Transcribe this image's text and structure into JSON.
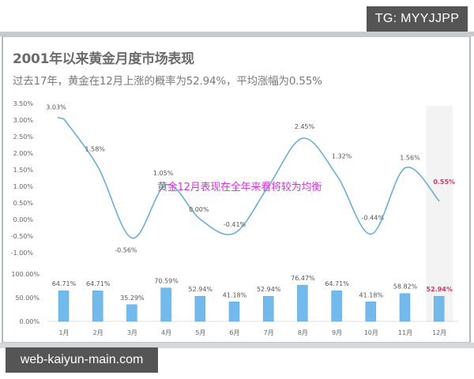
{
  "badges": {
    "top_right": "TG: MYYJJPP",
    "bottom_left": "web-kaiyun-main.com"
  },
  "title": "2001年以来黄金月度市场表现",
  "subtitle": "过去17年，黄金在12月上涨的概率为52.94%，平均涨幅为0.55%",
  "annotation": "黄金12月表现在全年来看将较为均衡",
  "colors": {
    "line": "#6aaed6",
    "bar": "#74b9ec",
    "bar_border": "#5aa5dc",
    "highlight_text": "#d6336c",
    "highlight_band": "#f3f3f3",
    "annotation": "#d633e0",
    "tick_text": "#666666"
  },
  "chart_data": [
    {
      "type": "line",
      "title": "平均涨幅",
      "categories": [
        "1月",
        "2月",
        "3月",
        "4月",
        "5月",
        "6月",
        "7月",
        "8月",
        "9月",
        "10月",
        "11月",
        "12月"
      ],
      "values": [
        3.03,
        1.58,
        -0.56,
        1.05,
        0.0,
        -0.41,
        null,
        2.45,
        1.32,
        -0.44,
        1.56,
        0.55
      ],
      "labels": [
        "3.03%",
        "1.58%",
        "-0.56%",
        "1.05%",
        "0.00%",
        "-0.41%",
        "",
        "2.45%",
        "1.32%",
        "-0.44%",
        "1.56%",
        "0.55%"
      ],
      "yticks": [
        "3.50%",
        "3.00%",
        "2.50%",
        "2.00%",
        "1.50%",
        "1.00%",
        "0.50%",
        "0.00%",
        "-0.50%",
        "-1.00%"
      ],
      "ylim": [
        -1.0,
        3.5
      ],
      "highlight_index": 11,
      "grid": false
    },
    {
      "type": "bar",
      "title": "上涨概率",
      "categories": [
        "1月",
        "2月",
        "3月",
        "4月",
        "5月",
        "6月",
        "7月",
        "8月",
        "9月",
        "10月",
        "11月",
        "12月"
      ],
      "values": [
        64.71,
        64.71,
        35.29,
        70.59,
        52.94,
        41.18,
        52.94,
        76.47,
        64.71,
        41.18,
        58.82,
        52.94
      ],
      "labels": [
        "64.71%",
        "64.71%",
        "35.29%",
        "70.59%",
        "52.94%",
        "41.18%",
        "52.94%",
        "76.47%",
        "64.71%",
        "41.18%",
        "58.82%",
        "52.94%"
      ],
      "yticks": [
        "100.00%",
        "50.00%",
        "0.00%"
      ],
      "ylim": [
        0,
        100
      ],
      "highlight_index": 11,
      "grid": false
    }
  ]
}
